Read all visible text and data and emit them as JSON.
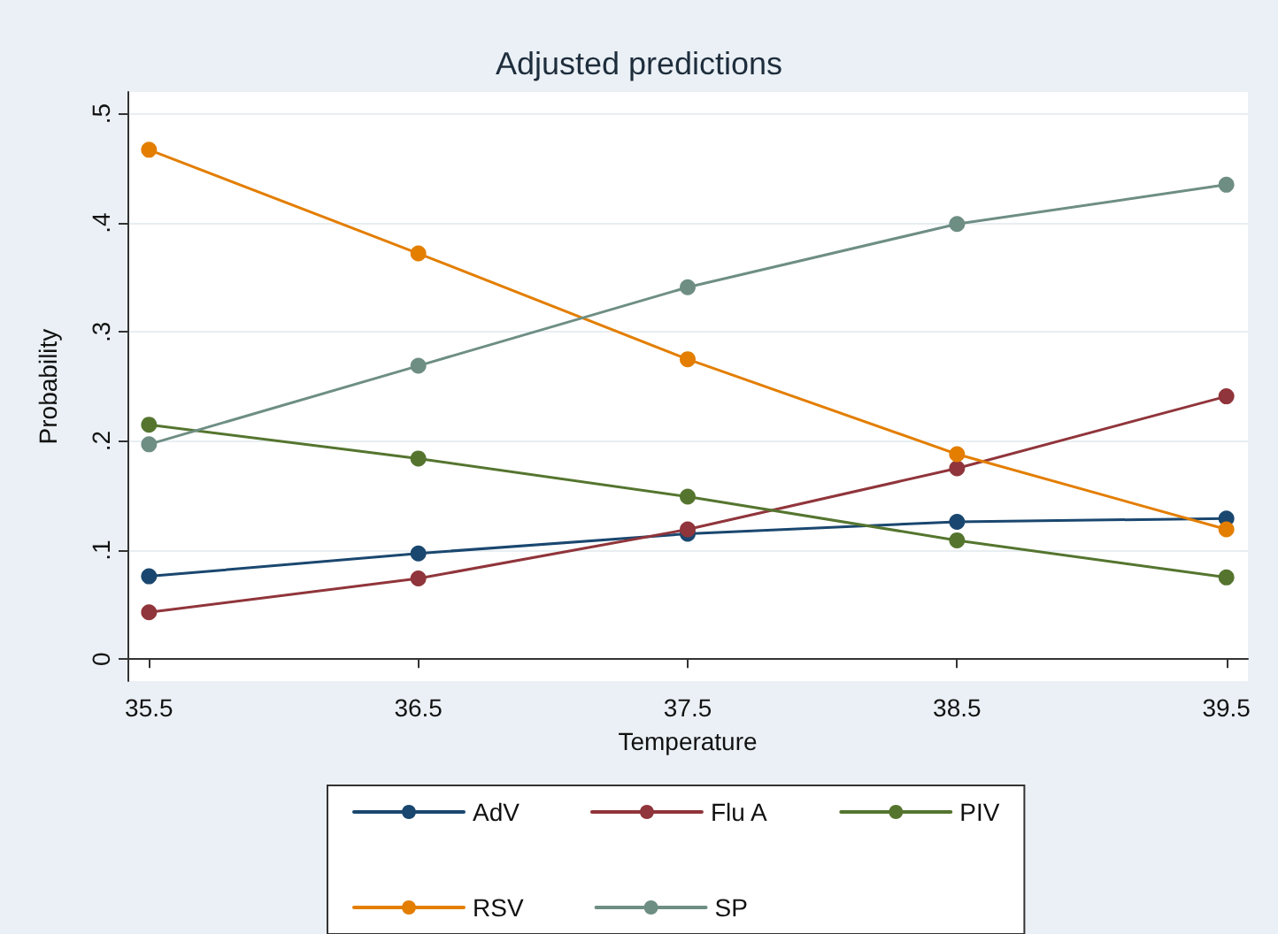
{
  "chart_data": {
    "type": "line",
    "title": "Adjusted predictions",
    "xlabel": "Temperature",
    "ylabel": "Probability",
    "x": [
      35.5,
      36.5,
      37.5,
      38.5,
      39.5
    ],
    "series": [
      {
        "name": "AdV",
        "color": "#1a476f",
        "values": [
          0.076,
          0.097,
          0.115,
          0.126,
          0.129
        ]
      },
      {
        "name": "Flu A",
        "color": "#90353b",
        "values": [
          0.043,
          0.074,
          0.119,
          0.175,
          0.241
        ]
      },
      {
        "name": "PIV",
        "color": "#55752f",
        "values": [
          0.215,
          0.184,
          0.149,
          0.109,
          0.075
        ]
      },
      {
        "name": "RSV",
        "color": "#e37e00",
        "values": [
          0.467,
          0.372,
          0.275,
          0.188,
          0.119
        ]
      },
      {
        "name": "SP",
        "color": "#6e8e84",
        "values": [
          0.197,
          0.269,
          0.341,
          0.399,
          0.435
        ]
      }
    ],
    "xlim": [
      35.42,
      39.58
    ],
    "xticks": [
      35.5,
      36.5,
      37.5,
      38.5,
      39.5
    ],
    "ylim": [
      -0.02,
      0.52
    ],
    "yticks": [
      {
        "value": 0,
        "label": "0"
      },
      {
        "value": 0.1,
        "label": ".1"
      },
      {
        "value": 0.2,
        "label": ".2"
      },
      {
        "value": 0.3,
        "label": ".3"
      },
      {
        "value": 0.4,
        "label": ".4"
      },
      {
        "value": 0.5,
        "label": ".5"
      }
    ],
    "grid": "y",
    "legend": "bottom",
    "marker": "circle",
    "line_style": "solid"
  }
}
